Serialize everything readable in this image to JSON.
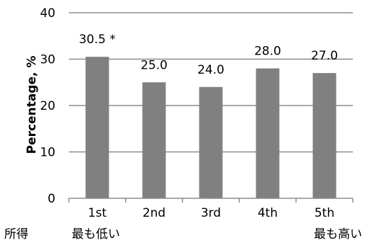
{
  "chart_data": {
    "type": "bar",
    "categories": [
      "1st",
      "2nd",
      "3rd",
      "4th",
      "5th"
    ],
    "values": [
      30.5,
      25.0,
      24.0,
      28.0,
      27.0
    ],
    "data_labels": [
      "30.5 *",
      "25.0",
      "24.0",
      "28.0",
      "27.0"
    ],
    "ylabel": "Percentage, %",
    "xlabel": "",
    "ylim": [
      0,
      40
    ],
    "yticks": [
      "0",
      "10",
      "20",
      "30",
      "40"
    ],
    "grid": true,
    "bar_color": "#808080",
    "grid_color": "#8c8c8c"
  },
  "x_annotations": {
    "left_prefix": "所得",
    "lowest": "最も低い",
    "highest": "最も高い"
  }
}
